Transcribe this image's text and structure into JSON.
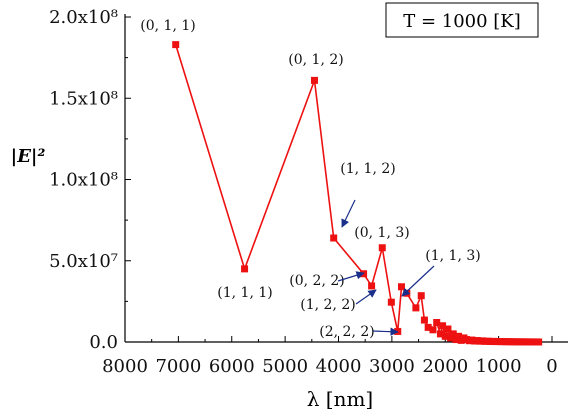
{
  "chart_data": {
    "type": "line",
    "title": "",
    "xlabel": "λ [nm]",
    "ylabel": "|E|²",
    "xlim": [
      8000,
      0
    ],
    "ylim": [
      0,
      200000000
    ],
    "x_reversed": true,
    "xticks": [
      8000,
      7000,
      6000,
      5000,
      4000,
      3000,
      2000,
      1000,
      0
    ],
    "xtick_labels": [
      "8000",
      "7000",
      "6000",
      "5000",
      "4000",
      "3000",
      "2000",
      "1000",
      "0"
    ],
    "yticks": [
      0,
      50000000,
      100000000,
      150000000,
      200000000
    ],
    "ytick_labels": [
      "0.0",
      "5.0x10⁷",
      "1.0x10⁸",
      "1.5x10⁸",
      "2.0x10⁸"
    ],
    "legend_box": "T = 1000 [K]",
    "color": "#ee1111",
    "series": [
      {
        "x": [
          7050,
          5760,
          4450,
          4090,
          3530,
          3380,
          3180,
          3010,
          2890,
          2820,
          2720,
          2550,
          2450,
          2390,
          2320,
          2230,
          2160,
          2090,
          2050,
          2000,
          1950,
          1900,
          1850,
          1800,
          1750,
          1700,
          1650,
          1600,
          1550,
          1500,
          1450,
          1400,
          1350,
          1300,
          1250,
          1200,
          1150,
          1100,
          1050,
          1000,
          950,
          900,
          850,
          800,
          750,
          700,
          650,
          600,
          550,
          500,
          450,
          400,
          350,
          300,
          250
        ],
        "y": [
          183000000,
          45000000,
          161000000,
          64000000,
          42000000,
          34500000,
          58000000,
          24500000,
          6500000,
          34000000,
          30000000,
          21000000,
          28500000,
          13500000,
          9000000,
          7500000,
          12000000,
          5000000,
          10000000,
          3500000,
          8000000,
          2500000,
          5000000,
          1500000,
          3500000,
          1000000,
          2500000,
          1500000,
          800000,
          1200000,
          600000,
          900000,
          500000,
          700000,
          400000,
          500000,
          300000,
          400000,
          250000,
          300000,
          200000,
          250000,
          150000,
          200000,
          120000,
          150000,
          100000,
          100000,
          80000,
          80000,
          60000,
          50000,
          40000,
          30000,
          20000
        ]
      }
    ],
    "annotations": [
      {
        "text": "(0, 1, 1)",
        "x": 7050,
        "y": 183000000
      },
      {
        "text": "(1, 1, 1)",
        "x": 5760,
        "y": 45000000
      },
      {
        "text": "(0, 1, 2)",
        "x": 4450,
        "y": 161000000
      },
      {
        "text": "(1, 1, 2)",
        "x": 4090,
        "y": 64000000
      },
      {
        "text": "(0, 1, 3)",
        "x": 3180,
        "y": 58000000
      },
      {
        "text": "(1, 1, 3)",
        "x": 2890,
        "y": 24500000
      },
      {
        "text": "(0, 2, 2)",
        "x": 3530,
        "y": 42000000
      },
      {
        "text": "(1, 2, 2)",
        "x": 3380,
        "y": 34500000
      },
      {
        "text": "(2, 2, 2)",
        "x": 2890,
        "y": 6500000
      }
    ]
  }
}
